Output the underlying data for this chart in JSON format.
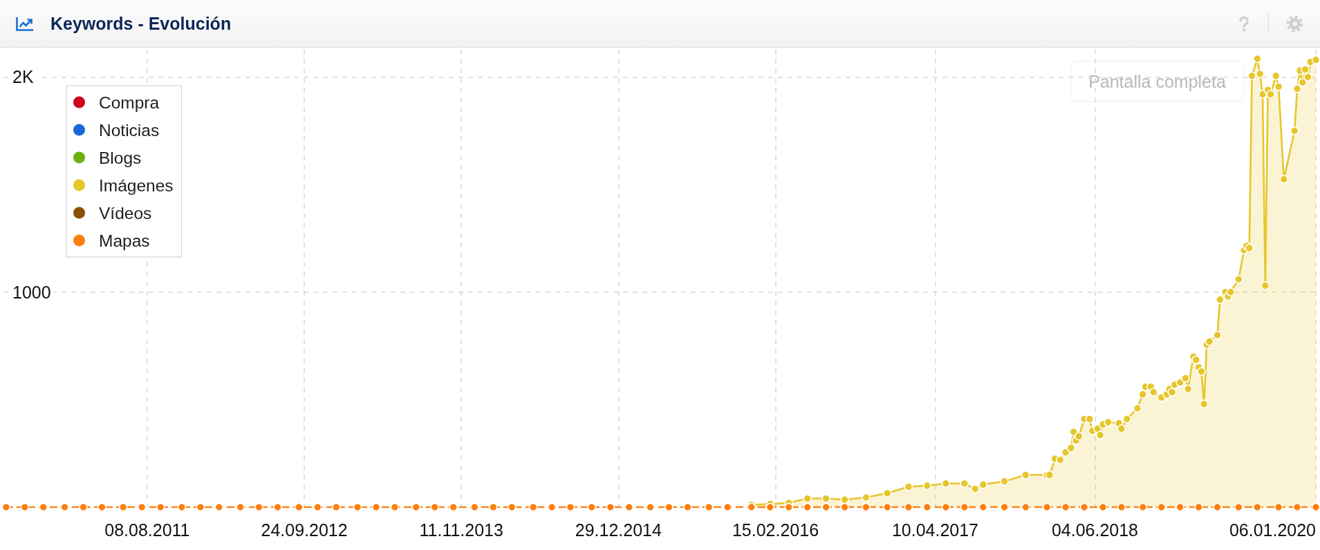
{
  "chart_data": {
    "type": "line",
    "title": "Keywords - Evolución",
    "annotations": [
      "Pantalla completa"
    ],
    "x": [
      "2010-08-02",
      "2010-09-20",
      "2010-11-08",
      "2011-01-03",
      "2011-02-21",
      "2011-04-11",
      "2011-06-06",
      "2011-07-25",
      "2011-09-12",
      "2011-11-07",
      "2011-12-26",
      "2012-02-13",
      "2012-04-09",
      "2012-05-28",
      "2012-07-16",
      "2012-09-10",
      "2012-10-29",
      "2012-12-17",
      "2013-02-11",
      "2013-04-01",
      "2013-05-20",
      "2013-07-15",
      "2013-09-02",
      "2013-10-21",
      "2013-12-16",
      "2014-02-03",
      "2014-03-24",
      "2014-05-19",
      "2014-07-07",
      "2014-08-25",
      "2014-10-20",
      "2014-12-08",
      "2015-01-26",
      "2015-03-23",
      "2015-05-11",
      "2015-06-29",
      "2015-08-24",
      "2015-10-12",
      "2015-12-14",
      "2016-02-01",
      "2016-03-21",
      "2016-05-09",
      "2016-06-27",
      "2016-08-15",
      "2016-10-10",
      "2016-12-05",
      "2017-01-30",
      "2017-03-20",
      "2017-05-08",
      "2017-06-26",
      "2017-08-14",
      "2017-10-09",
      "2017-12-04",
      "2018-01-29",
      "2018-03-19",
      "2018-05-07",
      "2018-06-25",
      "2018-08-13",
      "2018-10-08",
      "2018-11-26",
      "2019-01-14",
      "2019-03-04",
      "2019-04-22",
      "2019-06-17",
      "2019-08-05",
      "2019-09-30",
      "2019-11-18",
      "2020-01-06"
    ],
    "series": [
      {
        "name": "Compra",
        "color": "#d0021b",
        "values": [
          null,
          null,
          null,
          null,
          null,
          null,
          null,
          null,
          null,
          null,
          null,
          null,
          null,
          null,
          null,
          null,
          null,
          null,
          null,
          null,
          null,
          null,
          null,
          null,
          null,
          null,
          null,
          null,
          null,
          null,
          null,
          null,
          null,
          null,
          null,
          null,
          null,
          null,
          null,
          null,
          null,
          null,
          null,
          null,
          null,
          null,
          null,
          null,
          null,
          null,
          null,
          null,
          null,
          null,
          null,
          null,
          null,
          null,
          null,
          null,
          null,
          null,
          null,
          null,
          null,
          null,
          null,
          null
        ]
      },
      {
        "name": "Noticias",
        "color": "#1a6ad6",
        "values": [
          null,
          null,
          null,
          null,
          null,
          null,
          null,
          null,
          null,
          null,
          null,
          null,
          null,
          null,
          null,
          null,
          null,
          null,
          null,
          null,
          null,
          null,
          null,
          null,
          null,
          null,
          null,
          null,
          null,
          null,
          null,
          null,
          null,
          null,
          null,
          null,
          null,
          null,
          null,
          null,
          null,
          null,
          null,
          null,
          null,
          null,
          null,
          null,
          null,
          null,
          null,
          null,
          null,
          null,
          null,
          null,
          null,
          null,
          null,
          null,
          null,
          null,
          null,
          null,
          null,
          null,
          null,
          null
        ]
      },
      {
        "name": "Blogs",
        "color": "#6bb20f",
        "values": [
          null,
          null,
          null,
          null,
          null,
          null,
          null,
          null,
          null,
          null,
          null,
          null,
          null,
          null,
          null,
          null,
          null,
          null,
          null,
          null,
          null,
          null,
          null,
          null,
          null,
          null,
          null,
          null,
          null,
          null,
          null,
          null,
          null,
          null,
          null,
          null,
          null,
          null,
          null,
          null,
          null,
          null,
          null,
          null,
          null,
          null,
          null,
          null,
          null,
          null,
          null,
          null,
          null,
          null,
          null,
          null,
          null,
          null,
          null,
          null,
          null,
          null,
          null,
          null,
          null,
          null,
          null,
          null
        ]
      },
      {
        "name": "Imágenes",
        "type": "area",
        "color": "#e6c62b",
        "x": [
          "2015-12-14",
          "2016-02-01",
          "2016-03-21",
          "2016-05-09",
          "2016-06-27",
          "2016-08-15",
          "2016-10-10",
          "2016-12-05",
          "2017-01-30",
          "2017-03-20",
          "2017-05-08",
          "2017-06-26",
          "2017-07-24",
          "2017-08-14",
          "2017-10-09",
          "2017-12-04",
          "2018-01-29",
          "2018-02-05",
          "2018-02-19",
          "2018-03-05",
          "2018-03-19",
          "2018-04-02",
          "2018-04-09",
          "2018-04-16",
          "2018-04-23",
          "2018-05-07",
          "2018-05-21",
          "2018-05-28",
          "2018-06-11",
          "2018-06-18",
          "2018-06-25",
          "2018-07-09",
          "2018-08-06",
          "2018-08-13",
          "2018-08-27",
          "2018-09-24",
          "2018-10-08",
          "2018-10-15",
          "2018-10-29",
          "2018-11-05",
          "2018-11-26",
          "2018-12-10",
          "2018-12-17",
          "2018-12-24",
          "2018-12-31",
          "2019-01-14",
          "2019-01-28",
          "2019-02-04",
          "2019-02-18",
          "2019-02-25",
          "2019-03-04",
          "2019-03-11",
          "2019-03-18",
          "2019-03-25",
          "2019-04-01",
          "2019-04-22",
          "2019-04-29",
          "2019-05-13",
          "2019-05-20",
          "2019-05-27",
          "2019-06-17",
          "2019-07-01",
          "2019-07-08",
          "2019-07-15",
          "2019-07-22",
          "2019-08-05",
          "2019-08-12",
          "2019-08-19",
          "2019-08-26",
          "2019-09-02",
          "2019-09-09",
          "2019-09-23",
          "2019-09-30",
          "2019-10-14",
          "2019-11-11",
          "2019-11-18",
          "2019-11-25",
          "2019-12-02",
          "2019-12-09",
          "2019-12-16",
          "2019-12-23",
          "2020-01-06"
        ],
        "values": [
          10,
          15,
          20,
          40,
          40,
          35,
          45,
          65,
          95,
          100,
          110,
          110,
          85,
          105,
          120,
          150,
          150,
          150,
          225,
          220,
          255,
          275,
          350,
          310,
          330,
          410,
          410,
          355,
          365,
          335,
          385,
          395,
          390,
          365,
          410,
          460,
          525,
          560,
          560,
          535,
          510,
          525,
          550,
          535,
          570,
          580,
          600,
          550,
          700,
          685,
          650,
          630,
          480,
          755,
          770,
          800,
          965,
          1000,
          980,
          1000,
          1060,
          1195,
          1215,
          1205,
          2005,
          2085,
          2015,
          1920,
          1030,
          1940,
          1920,
          2005,
          1955,
          1525,
          1750,
          1945,
          2030,
          1975,
          2035,
          2000,
          2070,
          2080
        ]
      },
      {
        "name": "Vídeos",
        "color": "#8a4f06",
        "values": [
          null,
          null,
          null,
          null,
          null,
          null,
          null,
          null,
          null,
          null,
          null,
          null,
          null,
          null,
          null,
          null,
          null,
          null,
          null,
          null,
          null,
          null,
          null,
          null,
          null,
          null,
          null,
          null,
          null,
          null,
          null,
          null,
          null,
          null,
          null,
          null,
          null,
          null,
          null,
          null,
          null,
          null,
          null,
          null,
          null,
          null,
          null,
          null,
          null,
          null,
          null,
          null,
          null,
          null,
          null,
          null,
          null,
          null,
          null,
          null,
          null,
          null,
          null,
          null,
          null,
          null,
          null,
          null
        ]
      },
      {
        "name": "Mapas",
        "color": "#ff7f0e",
        "line_style": "dashed",
        "values": [
          0,
          0,
          0,
          0,
          0,
          0,
          0,
          0,
          0,
          0,
          0,
          0,
          0,
          0,
          0,
          0,
          0,
          0,
          0,
          0,
          0,
          0,
          0,
          0,
          0,
          0,
          0,
          0,
          0,
          0,
          0,
          0,
          0,
          0,
          0,
          0,
          0,
          0,
          0,
          0,
          0,
          0,
          0,
          0,
          0,
          0,
          0,
          0,
          0,
          0,
          0,
          0,
          0,
          0,
          0,
          0,
          0,
          0,
          0,
          0,
          0,
          0,
          0,
          0,
          0,
          0,
          0,
          0
        ]
      }
    ],
    "xlim": [
      "2010-07-26",
      "2020-01-06"
    ],
    "xticks": [
      {
        "value": "2011-08-08",
        "label": "08.08.2011"
      },
      {
        "value": "2012-09-24",
        "label": "24.09.2012"
      },
      {
        "value": "2013-11-11",
        "label": "11.11.2013"
      },
      {
        "value": "2014-12-29",
        "label": "29.12.2014"
      },
      {
        "value": "2016-02-15",
        "label": "15.02.2016"
      },
      {
        "value": "2017-04-10",
        "label": "10.04.2017"
      },
      {
        "value": "2018-06-04",
        "label": "04.06.2018"
      },
      {
        "value": "2020-01-06",
        "label": "06.01.2020"
      }
    ],
    "ylim": [
      0,
      2130
    ],
    "yticks": [
      1000,
      {
        "value": 2000,
        "label": "2K"
      }
    ],
    "grid": true,
    "legend": "top left",
    "marker": "circle"
  }
}
